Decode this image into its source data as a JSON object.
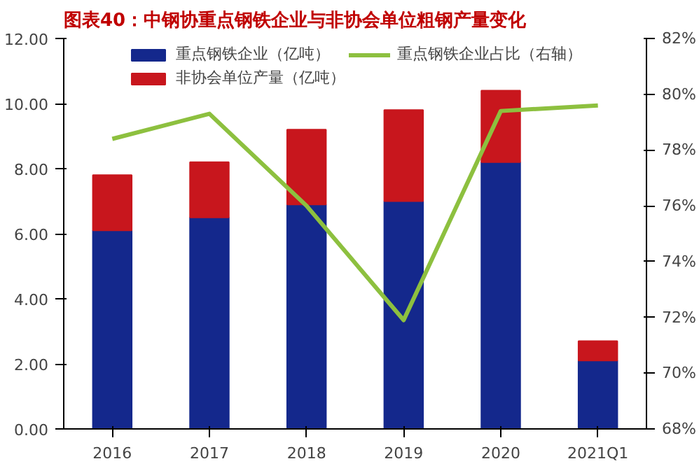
{
  "chart_data": {
    "type": "bar",
    "title": "图表40：中钢协重点钢铁企业与非协会单位粗钢产量变化",
    "categories": [
      "2016",
      "2017",
      "2018",
      "2019",
      "2020",
      "2021Q1"
    ],
    "stacked": true,
    "series": [
      {
        "name": "重点钢铁企业（亿吨）",
        "color": "#14288c",
        "values": [
          6.1,
          6.5,
          6.9,
          7.0,
          8.2,
          2.1
        ]
      },
      {
        "name": "非协会单位产量（亿吨）",
        "color": "#c8161d",
        "values": [
          1.7,
          1.7,
          2.3,
          2.8,
          2.2,
          0.6
        ]
      },
      {
        "name": "重点钢铁企业占比（右轴）",
        "color": "#8dc03f",
        "type": "line",
        "axis": "y2",
        "values": [
          78.4,
          79.3,
          76.0,
          71.9,
          79.4,
          79.6
        ]
      }
    ],
    "ylim": [
      0,
      12
    ],
    "yticks": [
      {
        "value": 0,
        "label": "0.00"
      },
      {
        "value": 2,
        "label": "2.00"
      },
      {
        "value": 4,
        "label": "4.00"
      },
      {
        "value": 6,
        "label": "6.00"
      },
      {
        "value": 8,
        "label": "8.00"
      },
      {
        "value": 10,
        "label": "10.00"
      },
      {
        "value": 12,
        "label": "12.00"
      }
    ],
    "y2lim": [
      68,
      82
    ],
    "y2ticks": [
      {
        "value": 68,
        "label": "68%"
      },
      {
        "value": 70,
        "label": "70%"
      },
      {
        "value": 72,
        "label": "72%"
      },
      {
        "value": 74,
        "label": "74%"
      },
      {
        "value": 76,
        "label": "76%"
      },
      {
        "value": 78,
        "label": "78%"
      },
      {
        "value": 80,
        "label": "80%"
      },
      {
        "value": 82,
        "label": "82%"
      }
    ],
    "legend": "top",
    "grid": false
  }
}
